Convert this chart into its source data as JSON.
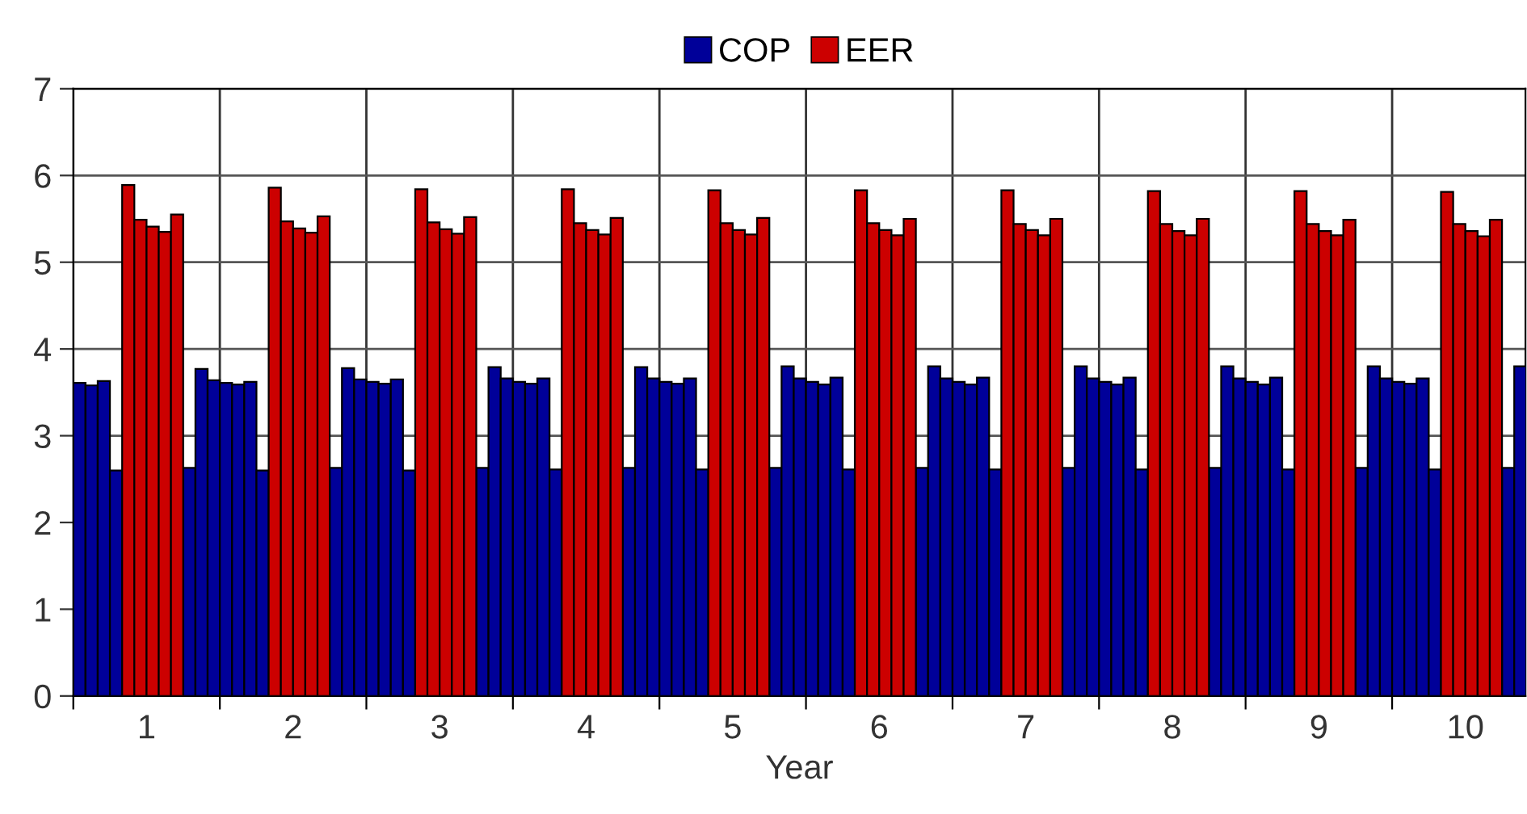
{
  "chart_data": {
    "type": "bar",
    "xlabel": "Year",
    "x": [
      0.5417,
      0.625,
      0.7083,
      0.7917,
      0.875,
      0.9583,
      1.0417,
      1.125,
      1.2083,
      1.2917,
      1.375,
      1.4583,
      1.5417,
      1.625,
      1.7083,
      1.7917,
      1.875,
      1.9583,
      2.0417,
      2.125,
      2.2083,
      2.2917,
      2.375,
      2.4583,
      2.5417,
      2.625,
      2.7083,
      2.7917,
      2.875,
      2.9583,
      3.0417,
      3.125,
      3.2083,
      3.2917,
      3.375,
      3.4583,
      3.5417,
      3.625,
      3.7083,
      3.7917,
      3.875,
      3.9583,
      4.0417,
      4.125,
      4.2083,
      4.2917,
      4.375,
      4.4583,
      4.5417,
      4.625,
      4.7083,
      4.7917,
      4.875,
      4.9583,
      5.0417,
      5.125,
      5.2083,
      5.2917,
      5.375,
      5.4583,
      5.5417,
      5.625,
      5.7083,
      5.7917,
      5.875,
      5.9583,
      6.0417,
      6.125,
      6.2083,
      6.2917,
      6.375,
      6.4583,
      6.5417,
      6.625,
      6.7083,
      6.7917,
      6.875,
      6.9583,
      7.0417,
      7.125,
      7.2083,
      7.2917,
      7.375,
      7.4583,
      7.5417,
      7.625,
      7.7083,
      7.7917,
      7.875,
      7.9583,
      8.0417,
      8.125,
      8.2083,
      8.2917,
      8.375,
      8.4583,
      8.5417,
      8.625,
      8.7083,
      8.7917,
      8.875,
      8.9583,
      9.0417,
      9.125,
      9.2083,
      9.2917,
      9.375,
      9.4583,
      9.5417,
      9.625,
      9.7083,
      9.7917,
      9.875,
      9.9583,
      10.0417,
      10.125,
      10.2083,
      10.2917,
      10.375
    ],
    "series": [
      {
        "name": "COP",
        "color": "#000099",
        "values": [
          3.61,
          3.58,
          3.63,
          2.6,
          null,
          null,
          null,
          null,
          null,
          2.63,
          3.77,
          3.64,
          3.61,
          3.59,
          3.62,
          2.6,
          null,
          null,
          null,
          null,
          null,
          2.63,
          3.78,
          3.65,
          3.62,
          3.6,
          3.65,
          2.6,
          null,
          null,
          null,
          null,
          null,
          2.63,
          3.79,
          3.66,
          3.62,
          3.6,
          3.66,
          2.61,
          null,
          null,
          null,
          null,
          null,
          2.63,
          3.79,
          3.66,
          3.62,
          3.6,
          3.66,
          2.61,
          null,
          null,
          null,
          null,
          null,
          2.63,
          3.8,
          3.66,
          3.62,
          3.59,
          3.67,
          2.61,
          null,
          null,
          null,
          null,
          null,
          2.63,
          3.8,
          3.66,
          3.62,
          3.59,
          3.67,
          2.61,
          null,
          null,
          null,
          null,
          null,
          2.63,
          3.8,
          3.66,
          3.62,
          3.59,
          3.67,
          2.61,
          null,
          null,
          null,
          null,
          null,
          2.63,
          3.8,
          3.66,
          3.62,
          3.59,
          3.67,
          2.61,
          null,
          null,
          null,
          null,
          null,
          2.63,
          3.8,
          3.66,
          3.62,
          3.6,
          3.66,
          2.61,
          null,
          null,
          null,
          null,
          null,
          2.63,
          3.8
        ]
      },
      {
        "name": "EER",
        "color": "#cc0000",
        "values": [
          null,
          null,
          null,
          null,
          5.89,
          5.49,
          5.41,
          5.35,
          5.55,
          null,
          null,
          null,
          null,
          null,
          null,
          null,
          5.86,
          5.47,
          5.39,
          5.34,
          5.53,
          null,
          null,
          null,
          null,
          null,
          null,
          null,
          5.84,
          5.46,
          5.38,
          5.33,
          5.52,
          null,
          null,
          null,
          null,
          null,
          null,
          null,
          5.84,
          5.45,
          5.37,
          5.32,
          5.51,
          null,
          null,
          null,
          null,
          null,
          null,
          null,
          5.83,
          5.45,
          5.37,
          5.32,
          5.51,
          null,
          null,
          null,
          null,
          null,
          null,
          null,
          5.83,
          5.45,
          5.37,
          5.31,
          5.5,
          null,
          null,
          null,
          null,
          null,
          null,
          null,
          5.83,
          5.44,
          5.37,
          5.31,
          5.5,
          null,
          null,
          null,
          null,
          null,
          null,
          null,
          5.82,
          5.44,
          5.36,
          5.31,
          5.5,
          null,
          null,
          null,
          null,
          null,
          null,
          null,
          5.82,
          5.44,
          5.36,
          5.31,
          5.49,
          null,
          null,
          null,
          null,
          null,
          null,
          null,
          5.81,
          5.44,
          5.36,
          5.3,
          5.49,
          null,
          null
        ]
      }
    ],
    "xlim": [
      0.5,
      10.41
    ],
    "xticks": [
      {
        "value": 0.5,
        "label": null
      },
      1,
      {
        "value": 1.5,
        "label": null
      },
      2,
      {
        "value": 2.5,
        "label": null
      },
      3,
      {
        "value": 3.5,
        "label": null
      },
      4,
      {
        "value": 4.5,
        "label": null
      },
      5,
      {
        "value": 5.5,
        "label": null
      },
      6,
      {
        "value": 6.5,
        "label": null
      },
      7,
      {
        "value": 7.5,
        "label": null
      },
      8,
      {
        "value": 8.5,
        "label": null
      },
      9,
      {
        "value": 9.5,
        "label": null
      },
      10
    ],
    "ylim": [
      0,
      7
    ],
    "yticks": [
      0,
      1,
      2,
      3,
      4,
      5,
      6,
      7
    ],
    "grid": true,
    "legend": "top"
  }
}
